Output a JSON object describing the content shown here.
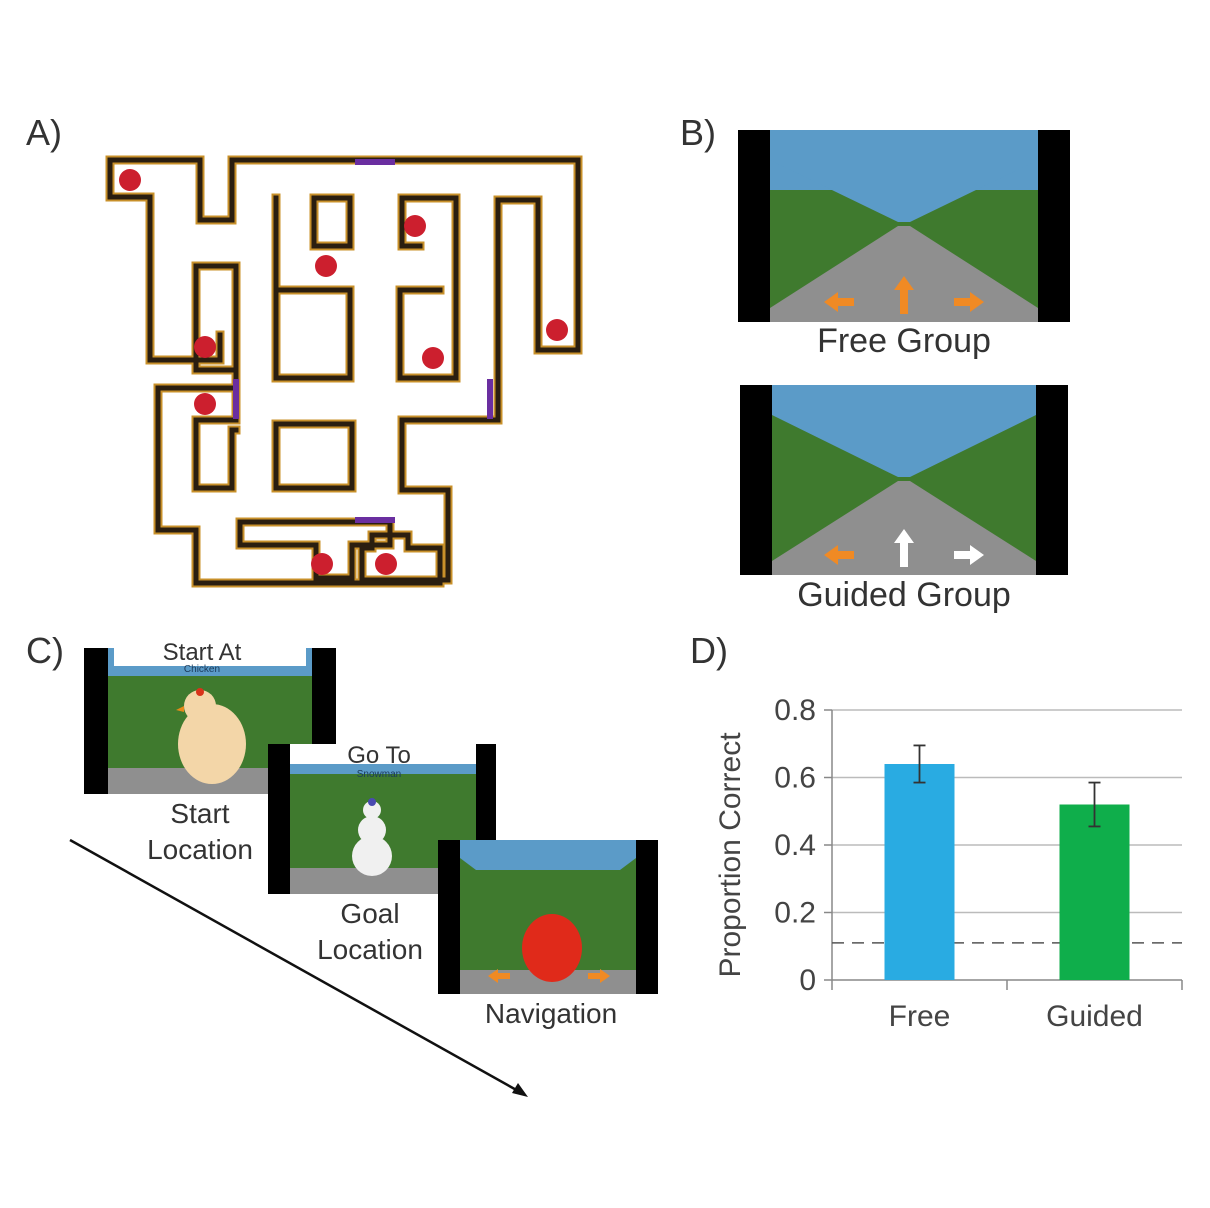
{
  "panels": {
    "a_label": "A)",
    "b_label": "B)",
    "c_label": "C)",
    "d_label": "D)"
  },
  "panel_b": {
    "free_caption": "Free Group",
    "guided_caption": "Guided Group"
  },
  "panel_c": {
    "screen1_title": "Start At",
    "screen1_subtitle": "Chicken",
    "screen1_caption_line1": "Start",
    "screen1_caption_line2": "Location",
    "screen2_title": "Go To",
    "screen2_subtitle": "Snowman",
    "screen2_caption_line1": "Goal",
    "screen2_caption_line2": "Location",
    "screen3_caption": "Navigation"
  },
  "colors": {
    "sky": "#5b9bc8",
    "hedge": "#3f7a2e",
    "road": "#8f8f8f",
    "maze_wall_outer": "#c8902a",
    "maze_wall_inner": "#2a1e10",
    "maze_door": "#6a2ea0",
    "maze_dot": "#cc1f2e",
    "arrow_orange": "#f08a24",
    "bar_free": "#29abe2",
    "bar_guided": "#0fae4b"
  },
  "chart_data": {
    "type": "bar",
    "categories": [
      "Free",
      "Guided"
    ],
    "values": [
      0.64,
      0.52
    ],
    "errors": [
      0.055,
      0.065
    ],
    "ylabel": "Proportion Correct",
    "xlabel": "",
    "ylim": [
      0,
      0.8
    ],
    "yticks": [
      "0",
      "0.2",
      "0.4",
      "0.6",
      "0.8"
    ],
    "chance_level": 0.11,
    "grid": true
  }
}
